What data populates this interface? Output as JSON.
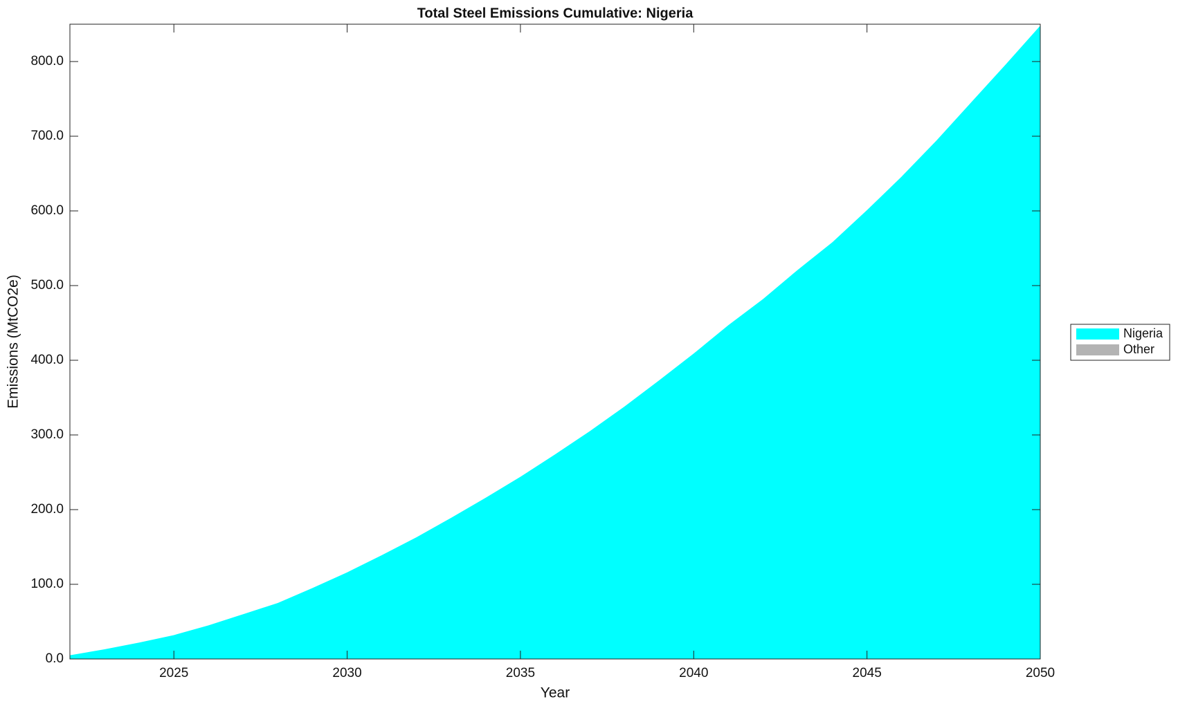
{
  "chart_data": {
    "type": "stacked_area",
    "title": "Total Steel Emissions Cumulative: Nigeria",
    "x_label": "Year",
    "y_label": "Emissions (MtCO2e)",
    "x": [
      2022,
      2023,
      2024,
      2025,
      2026,
      2027,
      2028,
      2029,
      2030,
      2031,
      2032,
      2033,
      2034,
      2035,
      2036,
      2037,
      2038,
      2039,
      2040,
      2041,
      2042,
      2043,
      2044,
      2045,
      2046,
      2047,
      2048,
      2049,
      2050
    ],
    "series": [
      {
        "name": "Nigeria",
        "color": "#00ffff",
        "values": [
          5,
          13,
          22,
          32,
          45,
          60,
          75,
          95,
          116,
          139,
          163,
          189,
          216,
          244,
          274,
          305,
          338,
          373,
          409,
          447,
          482,
          521,
          558,
          601,
          646,
          694,
          745,
          796,
          848
        ]
      },
      {
        "name": "Other",
        "color": "#b3b3b3",
        "values": [
          0,
          0,
          0,
          0,
          0,
          0,
          0,
          0,
          0,
          0,
          0,
          0,
          0,
          0,
          0,
          0,
          0,
          0,
          0,
          0,
          0,
          0,
          0,
          0,
          0,
          0,
          0,
          0,
          0
        ]
      }
    ],
    "xlim": [
      2022,
      2050
    ],
    "xticks": [
      2025,
      2030,
      2035,
      2040,
      2045,
      2050
    ],
    "ylim": [
      0,
      850
    ],
    "yticks": [
      {
        "value": 0,
        "label": "0.0"
      },
      {
        "value": 100,
        "label": "100.0"
      },
      {
        "value": 200,
        "label": "200.0"
      },
      {
        "value": 300,
        "label": "300.0"
      },
      {
        "value": 400,
        "label": "400.0"
      },
      {
        "value": 500,
        "label": "500.0"
      },
      {
        "value": 600,
        "label": "600.0"
      },
      {
        "value": 700,
        "label": "700.0"
      },
      {
        "value": 800,
        "label": "800.0"
      }
    ],
    "grid": false,
    "legend": "outside-right"
  }
}
